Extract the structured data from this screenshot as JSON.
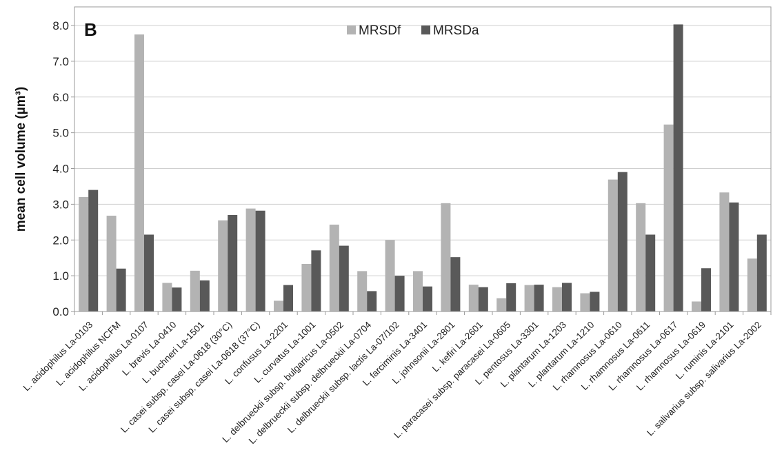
{
  "chart_data": {
    "type": "bar",
    "panel_label": "B",
    "ylabel": "mean cell volume (µm³)",
    "xlabel": "",
    "ylim": [
      0,
      8
    ],
    "yticks": [
      "0.0",
      "1.0",
      "2.0",
      "3.0",
      "4.0",
      "5.0",
      "6.0",
      "7.0",
      "8.0"
    ],
    "grid": true,
    "legend_position": "top-center",
    "categories": [
      "L. acidophilus La-0103",
      "L. acidophilus NCFM",
      "L. acidophilus La-0107",
      "L. brevis La-0410",
      "L. buchneri La-1501",
      "L. casei subsp. casei La-0618 (30°C)",
      "L. casei subsp. casei La-0618 (37°C)",
      "L. confusus La-2201",
      "L. curvatus La-1001",
      "L. delbrueckii subsp. bulgaricus La-0502",
      "L. delbrueckii subsp. delbrueckii La-0704",
      "L. delbrueckii subsp. lactis La-07/102",
      "L. farciminis La-3401",
      "L. johnsonii La-2801",
      "L. kefiri La-2601",
      "L. paracasei subsp. paracasei La-0605",
      "L. pentosus La-3301",
      "L. plantarum La-1203",
      "L. plantarum La-1210",
      "L. rhamnosus La-0610",
      "L. rhamnosus La-0611",
      "L. rhamnosus La-0617",
      "L. rhamnosus La-0619",
      "L. ruminis La-2101",
      "L. salivarius subsp. salivarius La-2002"
    ],
    "series": [
      {
        "name": "MRSDf",
        "color": "#b3b3b3",
        "values": [
          3.2,
          2.68,
          7.75,
          0.8,
          1.14,
          2.55,
          2.88,
          0.3,
          1.33,
          2.43,
          1.13,
          2.0,
          1.13,
          3.03,
          0.75,
          0.37,
          0.74,
          0.68,
          0.51,
          3.69,
          3.03,
          5.23,
          0.28,
          3.33,
          1.48
        ]
      },
      {
        "name": "MRSDa",
        "color": "#595959",
        "values": [
          3.4,
          1.2,
          2.15,
          0.67,
          0.87,
          2.7,
          2.82,
          0.74,
          1.71,
          1.84,
          0.57,
          1.0,
          0.7,
          1.52,
          0.68,
          0.79,
          0.75,
          0.8,
          0.55,
          3.9,
          2.15,
          8.03,
          1.21,
          3.05,
          2.15
        ]
      }
    ]
  }
}
